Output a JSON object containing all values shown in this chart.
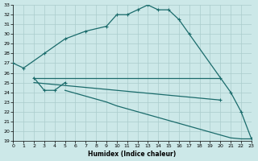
{
  "xlabel": "Humidex (Indice chaleur)",
  "background_color": "#cce8e8",
  "grid_color": "#aacccc",
  "line_color": "#1a6b6b",
  "xlim": [
    0,
    23
  ],
  "ylim": [
    19,
    33
  ],
  "xticks": [
    0,
    1,
    2,
    3,
    4,
    5,
    6,
    7,
    8,
    9,
    10,
    11,
    12,
    13,
    14,
    15,
    16,
    17,
    18,
    19,
    20,
    21,
    22,
    23
  ],
  "yticks": [
    19,
    20,
    21,
    22,
    23,
    24,
    25,
    26,
    27,
    28,
    29,
    30,
    31,
    32,
    33
  ],
  "line1": {
    "x": [
      0,
      1,
      3,
      5,
      7,
      9,
      10,
      11,
      12,
      13,
      14,
      15,
      16,
      17,
      21,
      22,
      23
    ],
    "y": [
      27,
      26.5,
      28,
      29.5,
      30.3,
      30.8,
      32,
      32,
      32.5,
      33,
      32.5,
      32.5,
      31.5,
      30,
      24,
      22,
      19.2
    ]
  },
  "line2": {
    "x": [
      2,
      3,
      4,
      5,
      6,
      7,
      8,
      9,
      10,
      11,
      12,
      13,
      14,
      15,
      16,
      17,
      18,
      19,
      20
    ],
    "y": [
      25.5,
      25.5,
      25.5,
      25.5,
      25.5,
      25.5,
      25.5,
      25.5,
      25.5,
      25.5,
      25.5,
      25.5,
      25.5,
      25.5,
      25.5,
      25.5,
      25.5,
      25.5,
      25.5
    ]
  },
  "line3": {
    "x": [
      2,
      3,
      4,
      5,
      6,
      7,
      8,
      9,
      10,
      11,
      12,
      13,
      14,
      15,
      16,
      17,
      18,
      19,
      20
    ],
    "y": [
      25.0,
      24.9,
      24.8,
      24.7,
      24.6,
      24.5,
      24.4,
      24.3,
      24.2,
      24.1,
      24.0,
      23.9,
      23.8,
      23.7,
      23.6,
      23.5,
      23.4,
      23.3,
      23.2
    ]
  },
  "line4": {
    "x": [
      2,
      3,
      4,
      5
    ],
    "y": [
      25.5,
      24.2,
      24.2,
      25.0
    ]
  },
  "line5": {
    "x": [
      5,
      6,
      7,
      8,
      9,
      10,
      11,
      12,
      13,
      14,
      15,
      16,
      17,
      18,
      19,
      20,
      21,
      22,
      23
    ],
    "y": [
      24.2,
      23.9,
      23.6,
      23.3,
      23.0,
      22.6,
      22.3,
      22.0,
      21.7,
      21.4,
      21.1,
      20.8,
      20.5,
      20.2,
      19.9,
      19.6,
      19.3,
      19.2,
      19.2
    ]
  }
}
